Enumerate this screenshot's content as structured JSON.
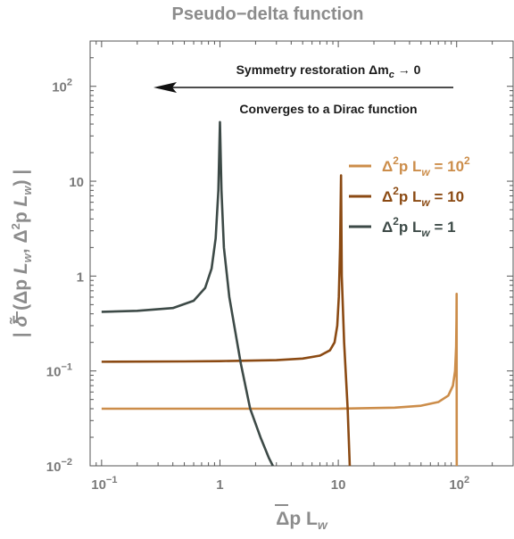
{
  "chart_data": {
    "type": "line",
    "title": "Pseudo−delta function",
    "xlabel": "Δp L_w",
    "ylabel": "| δ̃ (Δp L_w, Δ²p L_w) |",
    "x_scale": "log",
    "y_scale": "log",
    "xlim": [
      0.08,
      300
    ],
    "ylim": [
      0.01,
      300
    ],
    "x_ticks": [
      {
        "base": "10",
        "exp": "−1"
      },
      {
        "base": "1",
        "exp": ""
      },
      {
        "base": "10",
        "exp": ""
      },
      {
        "base": "10",
        "exp": "2"
      }
    ],
    "y_ticks": [
      {
        "base": "10",
        "exp": "−2"
      },
      {
        "base": "10",
        "exp": "−1"
      },
      {
        "base": "1",
        "exp": ""
      },
      {
        "base": "10",
        "exp": ""
      },
      {
        "base": "10",
        "exp": "2"
      }
    ],
    "annotations": {
      "top": "Symmetry restoration Δm",
      "top_sub": "c",
      "top_tail": " → 0",
      "bottom": "Converges to a Dirac function"
    },
    "legend_placement": "right",
    "series": [
      {
        "name": "Δ²p L_w = 10²",
        "legend_parts": {
          "pre": "Δ",
          "sup1": "2",
          "mid": "p L",
          "sub": "w",
          "post": " = 10",
          "sup2": "2"
        },
        "color": "#cc8d4a",
        "points": [
          [
            0.1,
            0.04
          ],
          [
            0.3,
            0.04
          ],
          [
            1,
            0.04
          ],
          [
            3,
            0.04
          ],
          [
            10,
            0.04
          ],
          [
            30,
            0.041
          ],
          [
            50,
            0.043
          ],
          [
            70,
            0.047
          ],
          [
            85,
            0.055
          ],
          [
            93,
            0.07
          ],
          [
            97,
            0.1
          ],
          [
            99,
            0.18
          ],
          [
            99.7,
            0.35
          ],
          [
            100,
            0.65
          ],
          [
            100.1,
            0.02
          ],
          [
            100.2,
            0.01
          ]
        ]
      },
      {
        "name": "Δ²p L_w = 10",
        "legend_parts": {
          "pre": "Δ",
          "sup1": "2",
          "mid": "p L",
          "sub": "w",
          "post": " = 10",
          "sup2": ""
        },
        "color": "#8b4a13",
        "points": [
          [
            0.1,
            0.125
          ],
          [
            0.5,
            0.126
          ],
          [
            1,
            0.127
          ],
          [
            3,
            0.13
          ],
          [
            5,
            0.135
          ],
          [
            7,
            0.145
          ],
          [
            8.5,
            0.165
          ],
          [
            9.3,
            0.2
          ],
          [
            9.8,
            0.3
          ],
          [
            10.1,
            0.6
          ],
          [
            10.35,
            2
          ],
          [
            10.55,
            11.5
          ],
          [
            10.7,
            1.0
          ],
          [
            11.2,
            0.2
          ],
          [
            12,
            0.04
          ],
          [
            12.5,
            0.01
          ]
        ]
      },
      {
        "name": "Δ²p L_w = 1",
        "legend_parts": {
          "pre": "Δ",
          "sup1": "2",
          "mid": "p L",
          "sub": "w",
          "post": " = 1",
          "sup2": ""
        },
        "color": "#3d4a47",
        "points": [
          [
            0.1,
            0.42
          ],
          [
            0.2,
            0.43
          ],
          [
            0.4,
            0.46
          ],
          [
            0.6,
            0.55
          ],
          [
            0.75,
            0.75
          ],
          [
            0.85,
            1.2
          ],
          [
            0.92,
            2.5
          ],
          [
            0.97,
            8
          ],
          [
            1.0,
            42
          ],
          [
            1.03,
            8
          ],
          [
            1.08,
            2
          ],
          [
            1.2,
            0.6
          ],
          [
            1.5,
            0.12
          ],
          [
            1.8,
            0.04
          ],
          [
            2.2,
            0.02
          ],
          [
            2.6,
            0.012
          ],
          [
            2.8,
            0.01
          ]
        ]
      }
    ]
  }
}
